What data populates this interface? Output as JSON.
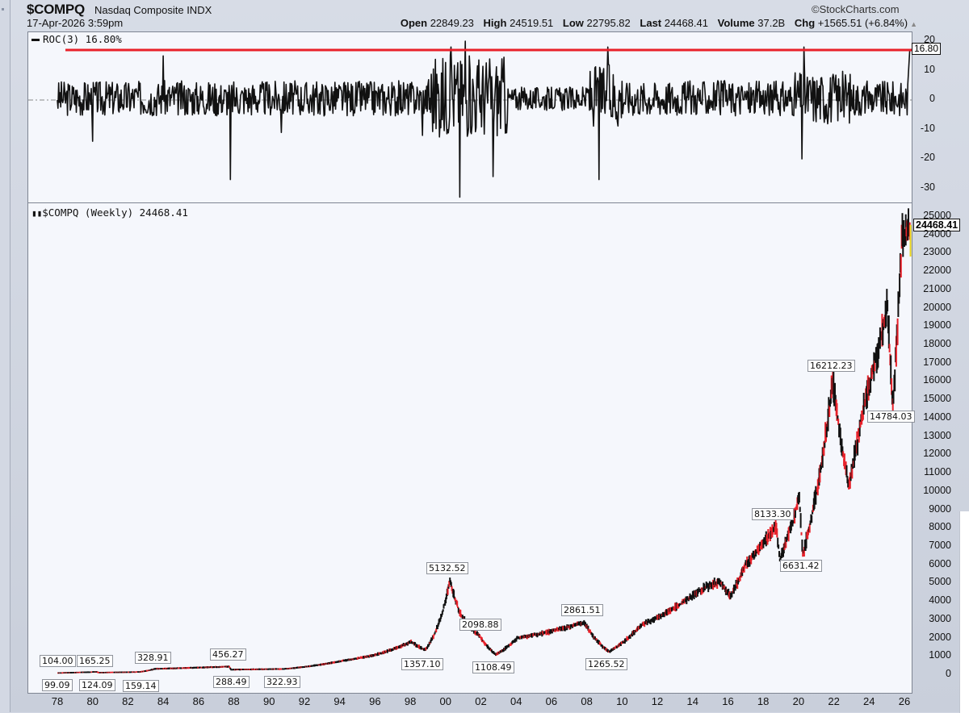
{
  "header": {
    "symbol": "$COMPQ",
    "name": "Nasdaq Composite",
    "exchange": "INDX",
    "datetime": "17-Apr-2026 3:59pm",
    "copyright": "©StockCharts.com",
    "open_label": "Open",
    "open": "22849.23",
    "high_label": "High",
    "high": "24519.51",
    "low_label": "Low",
    "low": "22795.82",
    "last_label": "Last",
    "last": "24468.41",
    "volume_label": "Volume",
    "volume": "37.2B",
    "chg_label": "Chg",
    "chg": "+1565.51 (+6.84%)",
    "chg_arrow": "▲"
  },
  "roc_panel": {
    "title": "ROC(3) 16.80%",
    "current_value_tag": "16.80",
    "line_color": "#111111",
    "hline_color": "#e8212a",
    "hline_value": 16.8,
    "y_ticks": [
      "20",
      "10",
      "0",
      "-10",
      "-20",
      "-30"
    ]
  },
  "price_panel": {
    "title": "$COMPQ (Weekly) 24468.41",
    "last_tag": "24468.41",
    "y_ticks": [
      "25000",
      "24000",
      "23000",
      "22000",
      "21000",
      "20000",
      "19000",
      "18000",
      "17000",
      "16000",
      "15000",
      "14000",
      "13000",
      "12000",
      "11000",
      "10000",
      "9000",
      "8000",
      "7000",
      "6000",
      "5000",
      "4000",
      "3000",
      "2000",
      "1000",
      "0"
    ],
    "up_color": "#111111",
    "down_color": "#e8212a"
  },
  "x_axis": {
    "ticks": [
      "78",
      "80",
      "82",
      "84",
      "86",
      "88",
      "90",
      "92",
      "94",
      "96",
      "98",
      "00",
      "02",
      "04",
      "06",
      "08",
      "10",
      "12",
      "14",
      "16",
      "18",
      "20",
      "22",
      "24",
      "26"
    ]
  },
  "chart_data": [
    {
      "type": "line",
      "title": "ROC(3) 16.80%",
      "xlabel": "",
      "ylabel": "",
      "ylim": [
        -33,
        22
      ],
      "grid": false,
      "reference_line": 16.8,
      "series": [
        {
          "name": "ROC(3)",
          "x_years": [
            1978,
            1980,
            1984,
            1987.8,
            1990.7,
            1998.7,
            2000.3,
            2000.8,
            2001.1,
            2002.7,
            2008.7,
            2009.2,
            2020.2,
            2020.3,
            2026.3
          ],
          "values": [
            0,
            -14,
            15,
            -27,
            -11,
            -12,
            18,
            -33,
            20,
            -26,
            -27,
            18,
            -20,
            18,
            16.8
          ]
        }
      ],
      "notes": "Volatile oscillator around 0; largest extremes near 2000-2002 and 2008-2009; final value 16.80"
    },
    {
      "type": "line",
      "title": "$COMPQ (Weekly) 24468.41",
      "xlabel": "",
      "ylabel": "",
      "ylim": [
        0,
        25000
      ],
      "grid": false,
      "x_tick_labels": [
        "78",
        "80",
        "82",
        "84",
        "86",
        "88",
        "90",
        "92",
        "94",
        "96",
        "98",
        "00",
        "02",
        "04",
        "06",
        "08",
        "10",
        "12",
        "14",
        "16",
        "18",
        "20",
        "22",
        "24",
        "26"
      ],
      "series": [
        {
          "name": "$COMPQ",
          "x_years": [
            1978.0,
            1980.2,
            1980.3,
            1982.6,
            1983.5,
            1987.7,
            1987.8,
            1990.8,
            1994,
            1996,
            1998.0,
            1998.8,
            2000.2,
            2000.8,
            2001.9,
            2002.8,
            2004,
            2006,
            2007.8,
            2009.2,
            2011,
            2013,
            2014.5,
            2015.5,
            2016.1,
            2017,
            2018.7,
            2018.9,
            2020.0,
            2020.2,
            2021.9,
            2022.8,
            2023.5,
            2024.5,
            2025.0,
            2025.3,
            2025.8,
            2026.3
          ],
          "values": [
            104.0,
            165.25,
            124.09,
            159.14,
            328.91,
            456.27,
            288.49,
            322.93,
            750,
            1100,
            1800,
            1357.1,
            5132.52,
            3300,
            2098.88,
            1108.49,
            2000,
            2400,
            2861.51,
            1265.52,
            2700,
            3700,
            4700,
            5100,
            4300,
            6100,
            8133.3,
            6300,
            9800,
            6631.42,
            16212.23,
            10200,
            14000,
            18000,
            20000,
            14784.03,
            23700,
            24468.41
          ]
        }
      ],
      "annotations": [
        {
          "label": "104.00",
          "type": "high"
        },
        {
          "label": "99.09",
          "type": "low"
        },
        {
          "label": "165.25",
          "type": "high"
        },
        {
          "label": "124.09",
          "type": "low"
        },
        {
          "label": "328.91",
          "type": "high"
        },
        {
          "label": "159.14",
          "type": "low"
        },
        {
          "label": "456.27",
          "type": "high"
        },
        {
          "label": "288.49",
          "type": "low"
        },
        {
          "label": "322.93",
          "type": "low"
        },
        {
          "label": "1357.10",
          "type": "low"
        },
        {
          "label": "5132.52",
          "type": "high"
        },
        {
          "label": "2098.88",
          "type": "high"
        },
        {
          "label": "1108.49",
          "type": "low"
        },
        {
          "label": "2861.51",
          "type": "high"
        },
        {
          "label": "1265.52",
          "type": "low"
        },
        {
          "label": "8133.30",
          "type": "high"
        },
        {
          "label": "6631.42",
          "type": "low"
        },
        {
          "label": "16212.23",
          "type": "high"
        },
        {
          "label": "14784.03",
          "type": "low"
        }
      ]
    }
  ],
  "annotations": {
    "a_104": "104.00",
    "a_99": "99.09",
    "a_165": "165.25",
    "a_124": "124.09",
    "a_328": "328.91",
    "a_159": "159.14",
    "a_456": "456.27",
    "a_288": "288.49",
    "a_322": "322.93",
    "a_1357": "1357.10",
    "a_5132": "5132.52",
    "a_2098": "2098.88",
    "a_1108": "1108.49",
    "a_2861": "2861.51",
    "a_1265": "1265.52",
    "a_8133": "8133.30",
    "a_6631": "6631.42",
    "a_16212": "16212.23",
    "a_14784": "14784.03"
  }
}
